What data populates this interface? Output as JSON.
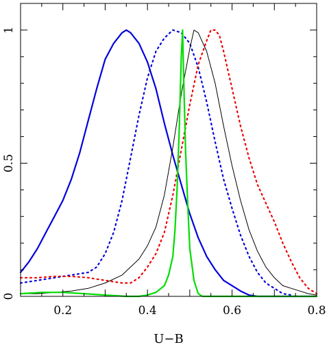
{
  "chart_data": {
    "type": "line",
    "title": "",
    "xlabel": "U−B",
    "ylabel": "",
    "xlim": [
      0.1,
      0.8
    ],
    "ylim": [
      0,
      1.1
    ],
    "grid": false,
    "x_ticks": [
      0.2,
      0.4,
      0.6,
      0.8
    ],
    "x_tick_labels": [
      "0.2",
      "0.4",
      "0.6",
      "0.8"
    ],
    "y_ticks": [
      0,
      0.5,
      1
    ],
    "y_tick_labels": [
      "0",
      "0.5",
      "1"
    ],
    "series": [
      {
        "color": "#0000dd",
        "style": "solid",
        "width": 2.2,
        "points": [
          [
            0.1,
            0.09
          ],
          [
            0.12,
            0.13
          ],
          [
            0.14,
            0.18
          ],
          [
            0.16,
            0.24
          ],
          [
            0.18,
            0.3
          ],
          [
            0.2,
            0.36
          ],
          [
            0.22,
            0.44
          ],
          [
            0.24,
            0.54
          ],
          [
            0.26,
            0.66
          ],
          [
            0.28,
            0.78
          ],
          [
            0.3,
            0.89
          ],
          [
            0.32,
            0.95
          ],
          [
            0.34,
            0.99
          ],
          [
            0.35,
            1.0
          ],
          [
            0.36,
            0.99
          ],
          [
            0.38,
            0.95
          ],
          [
            0.4,
            0.88
          ],
          [
            0.42,
            0.78
          ],
          [
            0.44,
            0.65
          ],
          [
            0.46,
            0.53
          ],
          [
            0.48,
            0.42
          ],
          [
            0.5,
            0.31
          ],
          [
            0.52,
            0.22
          ],
          [
            0.54,
            0.15
          ],
          [
            0.56,
            0.1
          ],
          [
            0.58,
            0.06
          ],
          [
            0.6,
            0.04
          ],
          [
            0.62,
            0.02
          ],
          [
            0.64,
            0.005
          ],
          [
            0.66,
            0.0
          ],
          [
            0.8,
            0.0
          ]
        ]
      },
      {
        "color": "#0000dd",
        "style": "dotted",
        "width": 2.2,
        "points": [
          [
            0.1,
            0.05
          ],
          [
            0.14,
            0.06
          ],
          [
            0.18,
            0.07
          ],
          [
            0.22,
            0.08
          ],
          [
            0.26,
            0.09
          ],
          [
            0.28,
            0.11
          ],
          [
            0.3,
            0.16
          ],
          [
            0.32,
            0.24
          ],
          [
            0.34,
            0.36
          ],
          [
            0.36,
            0.52
          ],
          [
            0.38,
            0.68
          ],
          [
            0.4,
            0.82
          ],
          [
            0.42,
            0.92
          ],
          [
            0.44,
            0.97
          ],
          [
            0.46,
            1.0
          ],
          [
            0.48,
            0.99
          ],
          [
            0.5,
            0.95
          ],
          [
            0.52,
            0.86
          ],
          [
            0.54,
            0.73
          ],
          [
            0.56,
            0.58
          ],
          [
            0.58,
            0.44
          ],
          [
            0.6,
            0.33
          ],
          [
            0.62,
            0.23
          ],
          [
            0.64,
            0.15
          ],
          [
            0.66,
            0.09
          ],
          [
            0.68,
            0.05
          ],
          [
            0.7,
            0.03
          ],
          [
            0.72,
            0.01
          ],
          [
            0.74,
            0.005
          ]
        ]
      },
      {
        "color": "#000000",
        "style": "solid",
        "width": 1,
        "points": [
          [
            0.1,
            0.01
          ],
          [
            0.14,
            0.01
          ],
          [
            0.18,
            0.015
          ],
          [
            0.22,
            0.02
          ],
          [
            0.26,
            0.03
          ],
          [
            0.3,
            0.05
          ],
          [
            0.34,
            0.08
          ],
          [
            0.38,
            0.14
          ],
          [
            0.4,
            0.19
          ],
          [
            0.42,
            0.26
          ],
          [
            0.44,
            0.38
          ],
          [
            0.46,
            0.56
          ],
          [
            0.48,
            0.76
          ],
          [
            0.5,
            0.93
          ],
          [
            0.51,
            1.0
          ],
          [
            0.52,
            0.99
          ],
          [
            0.54,
            0.92
          ],
          [
            0.56,
            0.8
          ],
          [
            0.58,
            0.64
          ],
          [
            0.6,
            0.49
          ],
          [
            0.62,
            0.36
          ],
          [
            0.64,
            0.25
          ],
          [
            0.66,
            0.17
          ],
          [
            0.68,
            0.11
          ],
          [
            0.7,
            0.07
          ],
          [
            0.72,
            0.04
          ],
          [
            0.74,
            0.03
          ],
          [
            0.76,
            0.02
          ],
          [
            0.78,
            0.01
          ],
          [
            0.8,
            0.005
          ]
        ]
      },
      {
        "color": "#ee0000",
        "style": "dotted",
        "width": 2.2,
        "points": [
          [
            0.1,
            0.07
          ],
          [
            0.14,
            0.07
          ],
          [
            0.18,
            0.075
          ],
          [
            0.22,
            0.075
          ],
          [
            0.26,
            0.07
          ],
          [
            0.3,
            0.06
          ],
          [
            0.34,
            0.05
          ],
          [
            0.36,
            0.05
          ],
          [
            0.38,
            0.07
          ],
          [
            0.4,
            0.11
          ],
          [
            0.42,
            0.16
          ],
          [
            0.44,
            0.24
          ],
          [
            0.46,
            0.38
          ],
          [
            0.48,
            0.55
          ],
          [
            0.5,
            0.72
          ],
          [
            0.52,
            0.87
          ],
          [
            0.54,
            0.96
          ],
          [
            0.55,
            1.0
          ],
          [
            0.56,
            1.0
          ],
          [
            0.57,
            0.98
          ],
          [
            0.58,
            0.92
          ],
          [
            0.6,
            0.78
          ],
          [
            0.62,
            0.64
          ],
          [
            0.64,
            0.52
          ],
          [
            0.66,
            0.42
          ],
          [
            0.68,
            0.35
          ],
          [
            0.7,
            0.28
          ],
          [
            0.72,
            0.2
          ],
          [
            0.74,
            0.13
          ],
          [
            0.76,
            0.07
          ],
          [
            0.78,
            0.03
          ],
          [
            0.8,
            0.01
          ]
        ]
      },
      {
        "color": "#00dd00",
        "style": "solid",
        "width": 2.2,
        "points": [
          [
            0.1,
            0.01
          ],
          [
            0.15,
            0.015
          ],
          [
            0.2,
            0.015
          ],
          [
            0.25,
            0.01
          ],
          [
            0.3,
            0.005
          ],
          [
            0.35,
            0.0
          ],
          [
            0.38,
            0.0
          ],
          [
            0.4,
            0.005
          ],
          [
            0.42,
            0.015
          ],
          [
            0.44,
            0.04
          ],
          [
            0.45,
            0.08
          ],
          [
            0.46,
            0.15
          ],
          [
            0.465,
            0.25
          ],
          [
            0.47,
            0.4
          ],
          [
            0.475,
            0.62
          ],
          [
            0.48,
            0.9
          ],
          [
            0.483,
            1.0
          ],
          [
            0.486,
            0.8
          ],
          [
            0.49,
            0.55
          ],
          [
            0.495,
            0.35
          ],
          [
            0.5,
            0.18
          ],
          [
            0.51,
            0.06
          ],
          [
            0.52,
            0.01
          ],
          [
            0.53,
            0.0
          ],
          [
            0.8,
            0.0
          ]
        ]
      }
    ]
  }
}
